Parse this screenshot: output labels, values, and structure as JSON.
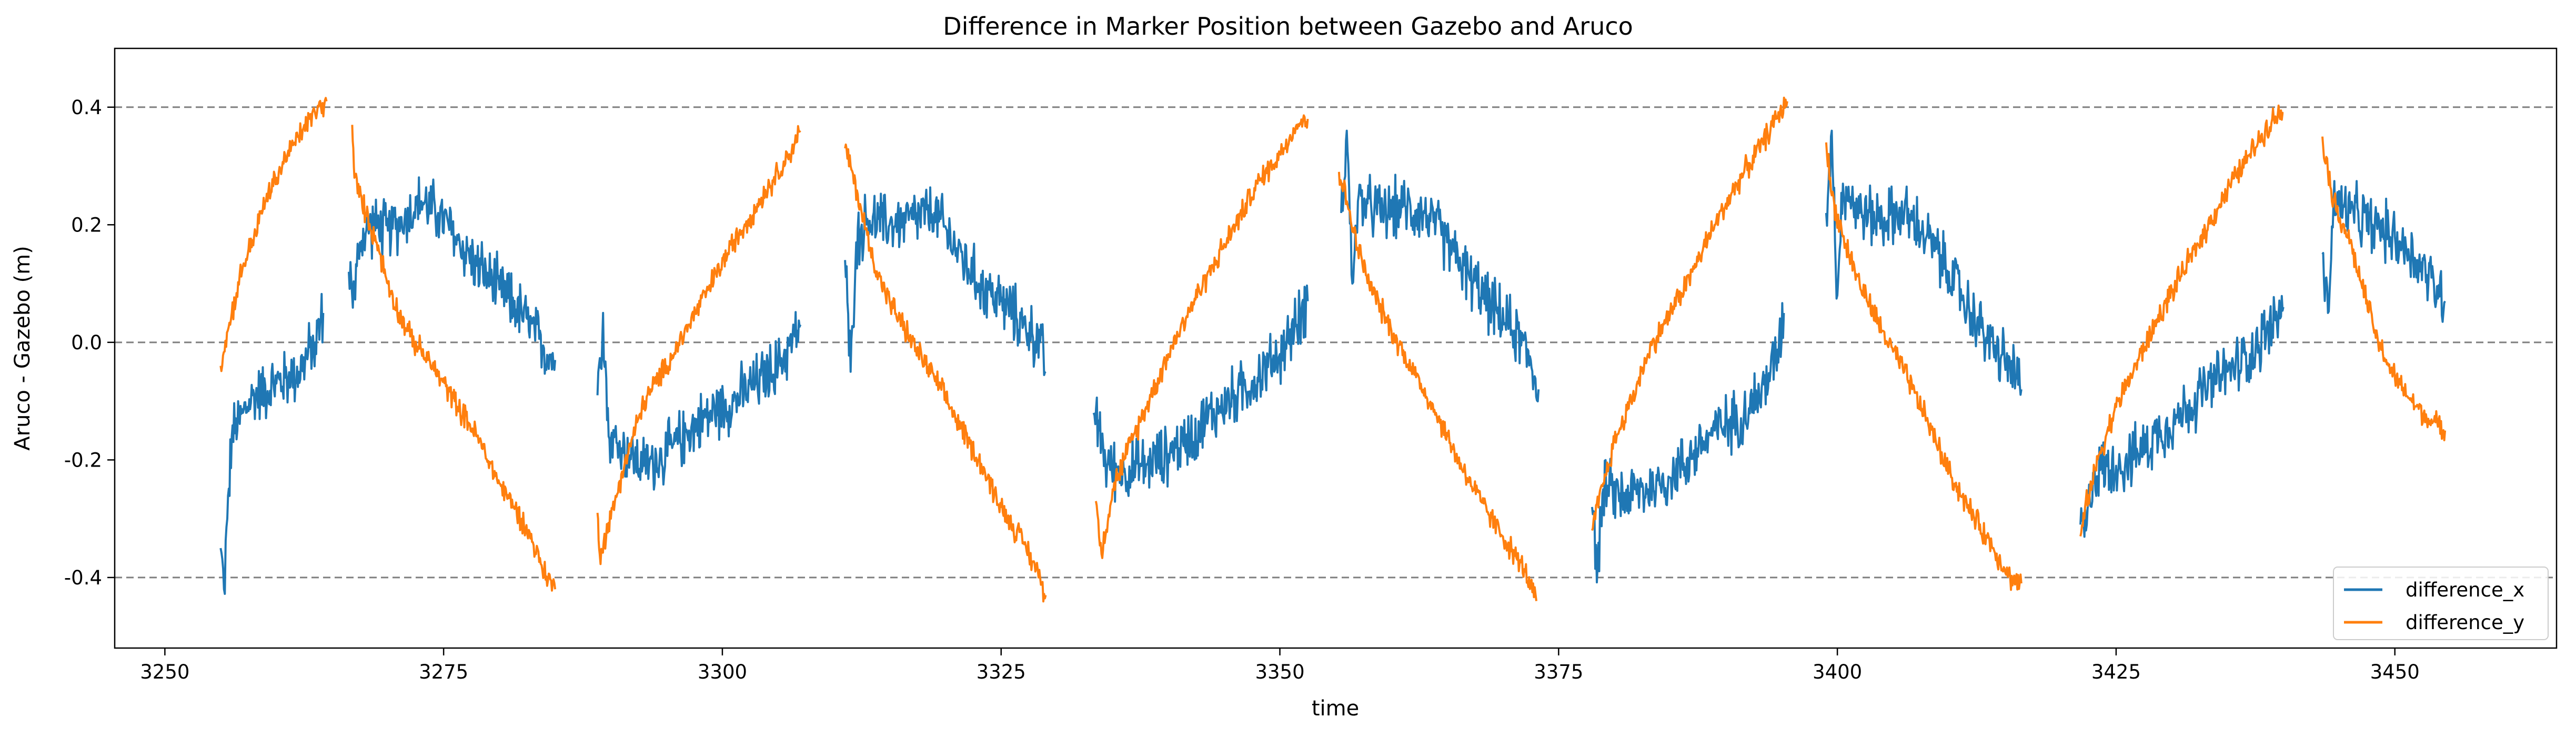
{
  "chart_data": {
    "type": "line",
    "title": "Difference in Marker Position between Gazebo and Aruco",
    "xlabel": "time",
    "ylabel": "Aruco - Gazebo (m)",
    "xlim": [
      3245.5,
      3464.5
    ],
    "ylim": [
      -0.52,
      0.5
    ],
    "xticks": [
      3250,
      3275,
      3300,
      3325,
      3350,
      3375,
      3400,
      3425,
      3450
    ],
    "yticks": [
      -0.4,
      -0.2,
      0.0,
      0.2,
      0.4
    ],
    "reference_lines": [
      -0.4,
      0.0,
      0.4
    ],
    "grid": false,
    "legend": "bottom-right",
    "colors": {
      "difference_x": "#1f77b4",
      "difference_y": "#ff7f0e",
      "reference": "#7f7f7f"
    },
    "series": [
      {
        "name": "difference_x",
        "segments": [
          [
            [
              3255.0,
              -0.35
            ],
            [
              3255.3,
              -0.42
            ],
            [
              3255.6,
              -0.3
            ],
            [
              3256.0,
              -0.16
            ],
            [
              3257.0,
              -0.12
            ],
            [
              3258.0,
              -0.09
            ],
            [
              3260.0,
              -0.07
            ],
            [
              3262.0,
              -0.05
            ],
            [
              3263.5,
              0.0
            ],
            [
              3264.2,
              0.05
            ]
          ],
          [
            [
              3266.5,
              0.12
            ],
            [
              3267.0,
              0.08
            ],
            [
              3267.5,
              0.17
            ],
            [
              3268.5,
              0.2
            ],
            [
              3270.0,
              0.19
            ],
            [
              3271.5,
              0.21
            ],
            [
              3273.0,
              0.24
            ],
            [
              3274.5,
              0.22
            ],
            [
              3276.0,
              0.18
            ],
            [
              3278.0,
              0.13
            ],
            [
              3280.0,
              0.09
            ],
            [
              3282.0,
              0.05
            ],
            [
              3284.0,
              -0.01
            ],
            [
              3285.0,
              -0.03
            ]
          ],
          [
            [
              3288.8,
              -0.09
            ],
            [
              3289.3,
              0.05
            ],
            [
              3289.8,
              -0.16
            ],
            [
              3291.0,
              -0.18
            ],
            [
              3293.0,
              -0.21
            ],
            [
              3295.0,
              -0.19
            ],
            [
              3297.0,
              -0.15
            ],
            [
              3299.0,
              -0.12
            ],
            [
              3301.0,
              -0.1
            ],
            [
              3303.0,
              -0.07
            ],
            [
              3305.0,
              -0.04
            ],
            [
              3306.5,
              0.01
            ],
            [
              3307.0,
              0.03
            ]
          ],
          [
            [
              3311.0,
              0.14
            ],
            [
              3311.5,
              -0.05
            ],
            [
              3312.0,
              0.17
            ],
            [
              3313.0,
              0.21
            ],
            [
              3315.0,
              0.2
            ],
            [
              3317.0,
              0.21
            ],
            [
              3319.0,
              0.22
            ],
            [
              3321.0,
              0.16
            ],
            [
              3323.0,
              0.1
            ],
            [
              3325.0,
              0.07
            ],
            [
              3327.0,
              0.03
            ],
            [
              3328.5,
              0.0
            ],
            [
              3329.0,
              -0.05
            ]
          ],
          [
            [
              3333.3,
              -0.12
            ],
            [
              3333.8,
              -0.15
            ],
            [
              3334.5,
              -0.21
            ],
            [
              3336.0,
              -0.22
            ],
            [
              3338.0,
              -0.21
            ],
            [
              3340.0,
              -0.19
            ],
            [
              3342.0,
              -0.16
            ],
            [
              3344.0,
              -0.12
            ],
            [
              3346.0,
              -0.09
            ],
            [
              3348.0,
              -0.06
            ],
            [
              3350.0,
              -0.02
            ],
            [
              3351.5,
              0.03
            ],
            [
              3352.5,
              0.07
            ]
          ],
          [
            [
              3355.5,
              0.22
            ],
            [
              3356.0,
              0.36
            ],
            [
              3356.5,
              0.1
            ],
            [
              3357.0,
              0.24
            ],
            [
              3359.0,
              0.22
            ],
            [
              3361.0,
              0.23
            ],
            [
              3363.0,
              0.22
            ],
            [
              3365.0,
              0.17
            ],
            [
              3367.0,
              0.11
            ],
            [
              3369.0,
              0.06
            ],
            [
              3371.0,
              0.02
            ],
            [
              3372.5,
              -0.03
            ],
            [
              3373.2,
              -0.08
            ]
          ],
          [
            [
              3378.0,
              -0.28
            ],
            [
              3378.5,
              -0.38
            ],
            [
              3379.0,
              -0.25
            ],
            [
              3381.0,
              -0.26
            ],
            [
              3383.0,
              -0.25
            ],
            [
              3385.0,
              -0.23
            ],
            [
              3387.0,
              -0.19
            ],
            [
              3389.0,
              -0.15
            ],
            [
              3391.0,
              -0.13
            ],
            [
              3393.0,
              -0.09
            ],
            [
              3394.5,
              -0.03
            ],
            [
              3395.2,
              0.05
            ]
          ],
          [
            [
              3399.0,
              0.22
            ],
            [
              3399.5,
              0.36
            ],
            [
              3400.0,
              0.08
            ],
            [
              3400.5,
              0.27
            ],
            [
              3402.0,
              0.22
            ],
            [
              3404.0,
              0.21
            ],
            [
              3406.0,
              0.22
            ],
            [
              3408.0,
              0.18
            ],
            [
              3410.0,
              0.12
            ],
            [
              3412.0,
              0.05
            ],
            [
              3414.0,
              -0.01
            ],
            [
              3415.5,
              -0.04
            ],
            [
              3416.5,
              -0.08
            ]
          ],
          [
            [
              3421.8,
              -0.31
            ],
            [
              3422.3,
              -0.32
            ],
            [
              3423.0,
              -0.22
            ],
            [
              3425.0,
              -0.21
            ],
            [
              3427.0,
              -0.19
            ],
            [
              3429.0,
              -0.15
            ],
            [
              3431.0,
              -0.12
            ],
            [
              3433.0,
              -0.08
            ],
            [
              3435.0,
              -0.05
            ],
            [
              3437.0,
              -0.02
            ],
            [
              3439.0,
              0.03
            ],
            [
              3440.0,
              0.06
            ]
          ],
          [
            [
              3443.5,
              0.15
            ],
            [
              3444.0,
              0.05
            ],
            [
              3444.5,
              0.24
            ],
            [
              3446.0,
              0.22
            ],
            [
              3448.0,
              0.2
            ],
            [
              3450.0,
              0.18
            ],
            [
              3452.0,
              0.14
            ],
            [
              3453.5,
              0.1
            ],
            [
              3454.5,
              0.07
            ]
          ]
        ]
      },
      {
        "name": "difference_y",
        "segments": [
          [
            [
              3255.0,
              -0.04
            ],
            [
              3256.0,
              0.05
            ],
            [
              3257.0,
              0.13
            ],
            [
              3258.0,
              0.18
            ],
            [
              3259.0,
              0.24
            ],
            [
              3260.0,
              0.28
            ],
            [
              3261.0,
              0.32
            ],
            [
              3262.0,
              0.35
            ],
            [
              3263.0,
              0.38
            ],
            [
              3264.0,
              0.4
            ],
            [
              3264.5,
              0.41
            ]
          ],
          [
            [
              3266.8,
              0.37
            ],
            [
              3267.0,
              0.28
            ],
            [
              3268.0,
              0.22
            ],
            [
              3269.0,
              0.17
            ],
            [
              3270.0,
              0.1
            ],
            [
              3271.0,
              0.05
            ],
            [
              3272.0,
              0.01
            ],
            [
              3274.0,
              -0.04
            ],
            [
              3276.0,
              -0.1
            ],
            [
              3278.0,
              -0.16
            ],
            [
              3280.0,
              -0.24
            ],
            [
              3282.0,
              -0.3
            ],
            [
              3283.0,
              -0.34
            ],
            [
              3284.0,
              -0.39
            ],
            [
              3285.0,
              -0.42
            ]
          ],
          [
            [
              3288.8,
              -0.29
            ],
            [
              3289.0,
              -0.36
            ],
            [
              3290.0,
              -0.3
            ],
            [
              3291.0,
              -0.22
            ],
            [
              3292.0,
              -0.16
            ],
            [
              3293.0,
              -0.1
            ],
            [
              3295.0,
              -0.04
            ],
            [
              3297.0,
              0.03
            ],
            [
              3299.0,
              0.1
            ],
            [
              3301.0,
              0.17
            ],
            [
              3303.0,
              0.23
            ],
            [
              3305.0,
              0.29
            ],
            [
              3306.0,
              0.32
            ],
            [
              3307.0,
              0.36
            ]
          ],
          [
            [
              3311.0,
              0.33
            ],
            [
              3311.5,
              0.3
            ],
            [
              3312.5,
              0.22
            ],
            [
              3313.5,
              0.14
            ],
            [
              3315.0,
              0.07
            ],
            [
              3317.0,
              0.0
            ],
            [
              3319.0,
              -0.06
            ],
            [
              3321.0,
              -0.13
            ],
            [
              3323.0,
              -0.2
            ],
            [
              3325.0,
              -0.28
            ],
            [
              3327.0,
              -0.34
            ],
            [
              3328.5,
              -0.4
            ],
            [
              3329.0,
              -0.43
            ]
          ],
          [
            [
              3333.5,
              -0.27
            ],
            [
              3334.0,
              -0.36
            ],
            [
              3335.0,
              -0.25
            ],
            [
              3336.0,
              -0.2
            ],
            [
              3338.0,
              -0.11
            ],
            [
              3340.0,
              -0.02
            ],
            [
              3342.0,
              0.06
            ],
            [
              3344.0,
              0.13
            ],
            [
              3346.0,
              0.2
            ],
            [
              3348.0,
              0.27
            ],
            [
              3350.0,
              0.32
            ],
            [
              3351.5,
              0.37
            ],
            [
              3352.5,
              0.38
            ]
          ],
          [
            [
              3355.3,
              0.29
            ],
            [
              3356.0,
              0.24
            ],
            [
              3357.0,
              0.16
            ],
            [
              3358.0,
              0.1
            ],
            [
              3360.0,
              0.02
            ],
            [
              3362.0,
              -0.05
            ],
            [
              3364.0,
              -0.12
            ],
            [
              3366.0,
              -0.2
            ],
            [
              3368.0,
              -0.27
            ],
            [
              3370.0,
              -0.33
            ],
            [
              3372.0,
              -0.39
            ],
            [
              3373.0,
              -0.44
            ]
          ],
          [
            [
              3378.0,
              -0.32
            ],
            [
              3379.0,
              -0.24
            ],
            [
              3380.0,
              -0.17
            ],
            [
              3381.5,
              -0.1
            ],
            [
              3383.0,
              -0.02
            ],
            [
              3385.0,
              0.05
            ],
            [
              3387.0,
              0.12
            ],
            [
              3389.0,
              0.2
            ],
            [
              3391.0,
              0.27
            ],
            [
              3393.0,
              0.33
            ],
            [
              3394.5,
              0.38
            ],
            [
              3395.5,
              0.41
            ]
          ],
          [
            [
              3399.0,
              0.34
            ],
            [
              3399.5,
              0.25
            ],
            [
              3400.5,
              0.18
            ],
            [
              3402.0,
              0.1
            ],
            [
              3404.0,
              0.02
            ],
            [
              3406.0,
              -0.05
            ],
            [
              3408.0,
              -0.13
            ],
            [
              3410.0,
              -0.22
            ],
            [
              3412.0,
              -0.29
            ],
            [
              3414.0,
              -0.35
            ],
            [
              3415.5,
              -0.4
            ],
            [
              3416.5,
              -0.41
            ]
          ],
          [
            [
              3421.8,
              -0.33
            ],
            [
              3422.5,
              -0.26
            ],
            [
              3423.5,
              -0.19
            ],
            [
              3425.0,
              -0.11
            ],
            [
              3427.0,
              -0.03
            ],
            [
              3429.0,
              0.05
            ],
            [
              3431.0,
              0.12
            ],
            [
              3433.0,
              0.19
            ],
            [
              3435.0,
              0.26
            ],
            [
              3437.0,
              0.32
            ],
            [
              3439.0,
              0.38
            ],
            [
              3440.0,
              0.39
            ]
          ],
          [
            [
              3443.5,
              0.35
            ],
            [
              3444.5,
              0.24
            ],
            [
              3446.0,
              0.17
            ],
            [
              3447.0,
              0.1
            ],
            [
              3448.5,
              0.0
            ],
            [
              3450.0,
              -0.06
            ],
            [
              3451.5,
              -0.1
            ],
            [
              3453.0,
              -0.13
            ],
            [
              3454.5,
              -0.15
            ]
          ]
        ]
      }
    ]
  }
}
